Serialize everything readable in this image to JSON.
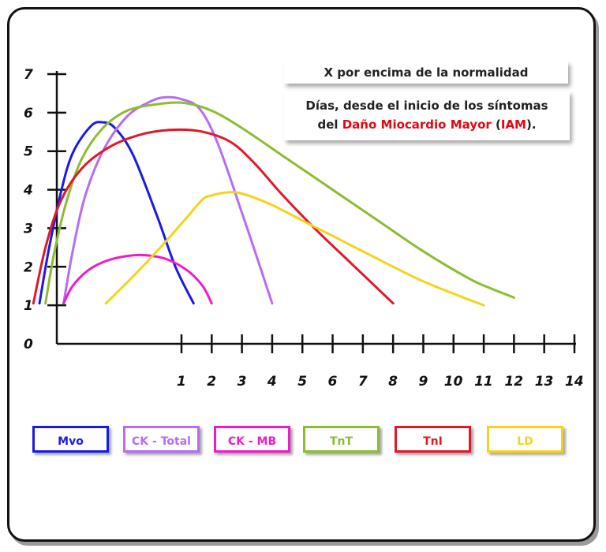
{
  "annotation": {
    "line1": "X por encima de la normalidad",
    "line2": "Días, desde el inicio de los síntomas",
    "line3_pre": "del ",
    "line3_red1": "Daño Miocardio Mayor",
    "line3_mid": " (",
    "line3_red2": "IAM",
    "line3_post": ")."
  },
  "chart_data": {
    "type": "line",
    "title": "",
    "xlabel": "Días, desde el inicio de los síntomas del Daño Miocardio Mayor (IAM).",
    "ylabel": "X por encima de la normalidad",
    "xlim": [
      -4.2,
      14
    ],
    "ylim": [
      0,
      7
    ],
    "x_ticks": [
      1,
      2,
      3,
      4,
      5,
      6,
      7,
      8,
      9,
      10,
      11,
      12,
      13,
      14
    ],
    "y_ticks": [
      0,
      1,
      2,
      3,
      4,
      5,
      6,
      7
    ],
    "grid": false,
    "legend_position": "bottom",
    "series": [
      {
        "name": "Mvo",
        "color": "#1a1ae6",
        "points": [
          [
            -3.7,
            1.05
          ],
          [
            -3.4,
            2.4
          ],
          [
            -3.0,
            3.9
          ],
          [
            -2.6,
            4.95
          ],
          [
            -2.0,
            5.65
          ],
          [
            -1.6,
            5.75
          ],
          [
            -1.2,
            5.6
          ],
          [
            -0.6,
            4.9
          ],
          [
            0.2,
            3.3
          ],
          [
            0.8,
            2.0
          ],
          [
            1.4,
            1.05
          ]
        ]
      },
      {
        "name": "CK - Total",
        "color": "#b86cf0",
        "points": [
          [
            -2.9,
            1.05
          ],
          [
            -2.6,
            2.4
          ],
          [
            -2.2,
            3.8
          ],
          [
            -1.6,
            5.0
          ],
          [
            -0.8,
            5.9
          ],
          [
            0,
            6.3
          ],
          [
            0.5,
            6.4
          ],
          [
            1.0,
            6.35
          ],
          [
            1.6,
            6.1
          ],
          [
            2.2,
            5.2
          ],
          [
            3.0,
            3.4
          ],
          [
            3.6,
            2.0
          ],
          [
            4.0,
            1.05
          ]
        ]
      },
      {
        "name": "CK - MB",
        "color": "#ee1cc8",
        "points": [
          [
            -2.9,
            1.05
          ],
          [
            -2.6,
            1.5
          ],
          [
            -2.1,
            1.9
          ],
          [
            -1.5,
            2.15
          ],
          [
            -0.8,
            2.28
          ],
          [
            -0.2,
            2.3
          ],
          [
            0.5,
            2.2
          ],
          [
            1.2,
            1.9
          ],
          [
            1.7,
            1.5
          ],
          [
            2.0,
            1.05
          ]
        ]
      },
      {
        "name": "TnT",
        "color": "#8bbd2e",
        "points": [
          [
            -3.5,
            1.05
          ],
          [
            -3.2,
            2.4
          ],
          [
            -2.8,
            3.7
          ],
          [
            -2.3,
            4.8
          ],
          [
            -1.6,
            5.6
          ],
          [
            -0.8,
            6.05
          ],
          [
            0.2,
            6.22
          ],
          [
            1.1,
            6.25
          ],
          [
            2.0,
            6.05
          ],
          [
            3.0,
            5.6
          ],
          [
            4.5,
            4.8
          ],
          [
            6,
            4.0
          ],
          [
            7.5,
            3.2
          ],
          [
            9,
            2.4
          ],
          [
            10.5,
            1.7
          ],
          [
            11.2,
            1.45
          ],
          [
            12,
            1.2
          ]
        ]
      },
      {
        "name": "TnI",
        "color": "#e01828",
        "points": [
          [
            -3.9,
            1.05
          ],
          [
            -3.5,
            2.5
          ],
          [
            -3.0,
            3.7
          ],
          [
            -2.3,
            4.55
          ],
          [
            -1.4,
            5.1
          ],
          [
            -0.4,
            5.42
          ],
          [
            0.6,
            5.55
          ],
          [
            1.6,
            5.52
          ],
          [
            2.6,
            5.25
          ],
          [
            3.4,
            4.7
          ],
          [
            4.3,
            3.9
          ],
          [
            5.4,
            3.0
          ],
          [
            6.6,
            2.1
          ],
          [
            7.4,
            1.5
          ],
          [
            8,
            1.05
          ]
        ]
      },
      {
        "name": "LD",
        "color": "#f5d31c",
        "points": [
          [
            -1.5,
            1.05
          ],
          [
            -0.6,
            1.75
          ],
          [
            0.3,
            2.5
          ],
          [
            1.2,
            3.3
          ],
          [
            1.7,
            3.75
          ],
          [
            2.0,
            3.85
          ],
          [
            2.5,
            3.93
          ],
          [
            3.0,
            3.9
          ],
          [
            4,
            3.6
          ],
          [
            5,
            3.2
          ],
          [
            6,
            2.8
          ],
          [
            7,
            2.4
          ],
          [
            8,
            2.0
          ],
          [
            9,
            1.62
          ],
          [
            10,
            1.3
          ],
          [
            11,
            1.0
          ]
        ]
      }
    ]
  },
  "legend": [
    {
      "label": "Mvo",
      "color": "#1a1ae6"
    },
    {
      "label": "CK - Total",
      "color": "#b86cf0"
    },
    {
      "label": "CK - MB",
      "color": "#ee1cc8"
    },
    {
      "label": "TnT",
      "color": "#8bbd2e"
    },
    {
      "label": "TnI",
      "color": "#e01828"
    },
    {
      "label": "LD",
      "color": "#f5d31c"
    }
  ]
}
